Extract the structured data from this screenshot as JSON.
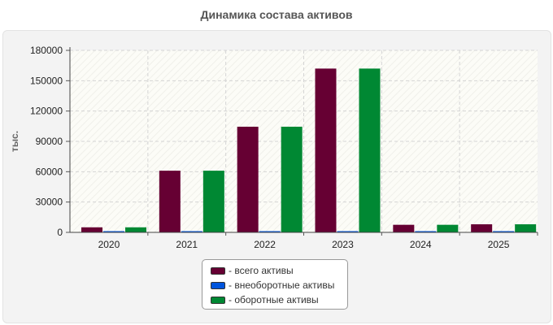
{
  "chart_data": {
    "type": "bar",
    "title": "Динамика состава активов",
    "ylabel": "тыс.",
    "xlabel": "",
    "categories": [
      "2020",
      "2021",
      "2022",
      "2023",
      "2024",
      "2025"
    ],
    "series": [
      {
        "name": "всего активы",
        "color": "#660033",
        "values": [
          5000,
          61000,
          104500,
          162000,
          7500,
          8000
        ]
      },
      {
        "name": "внеоборотные активы",
        "color": "#0055dd",
        "values": [
          0,
          0,
          0,
          0,
          0,
          0
        ]
      },
      {
        "name": "оборотные активы",
        "color": "#008833",
        "values": [
          5000,
          61000,
          104500,
          162000,
          7500,
          8000
        ]
      }
    ],
    "ylim": [
      0,
      180000
    ],
    "yticks": [
      "0",
      "30000",
      "60000",
      "90000",
      "120000",
      "150000",
      "180000"
    ],
    "grid": true,
    "legend_position": "bottom-center"
  },
  "legend": {
    "items": [
      {
        "label": "- всего активы",
        "color": "#660033"
      },
      {
        "label": "- внеоборотные активы",
        "color": "#0055dd"
      },
      {
        "label": "- оборотные активы",
        "color": "#008833"
      }
    ]
  }
}
